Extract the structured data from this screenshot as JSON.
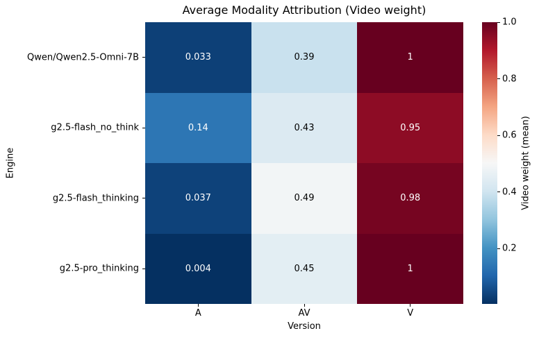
{
  "chart_data": {
    "type": "heatmap",
    "title": "Average Modality Attribution (Video weight)",
    "xlabel": "Version",
    "ylabel": "Engine",
    "categories_x": [
      "A",
      "AV",
      "V"
    ],
    "categories_y": [
      "Qwen/Qwen2.5-Omni-7B",
      "g2.5-flash_no_think",
      "g2.5-flash_thinking",
      "g2.5-pro_thinking"
    ],
    "values": [
      [
        0.033,
        0.39,
        1
      ],
      [
        0.14,
        0.43,
        0.95
      ],
      [
        0.037,
        0.49,
        0.98
      ],
      [
        0.004,
        0.45,
        1
      ]
    ],
    "annotations": [
      [
        "0.033",
        "0.39",
        "1"
      ],
      [
        "0.14",
        "0.43",
        "0.95"
      ],
      [
        "0.037",
        "0.49",
        "0.98"
      ],
      [
        "0.004",
        "0.45",
        "1"
      ]
    ],
    "vmin": 0.004,
    "vmax": 1.0,
    "grid": false,
    "colormap": "RdBu_r",
    "colormap_anchors": [
      "#053061",
      "#2166ac",
      "#4393c3",
      "#92c5de",
      "#d1e5f0",
      "#f7f7f7",
      "#fddbc7",
      "#f4a582",
      "#d6604d",
      "#b2182b",
      "#67001f"
    ],
    "annotation_text_colors": {
      "light": "#ffffff",
      "dark": "#000000"
    },
    "colorbar": {
      "label": "Video weight (mean)",
      "ticks": [
        1.0,
        0.8,
        0.6,
        0.4,
        0.2
      ],
      "tick_labels": [
        "1.0",
        "0.8",
        "0.6",
        "0.4",
        "0.2"
      ],
      "position": "right"
    }
  }
}
